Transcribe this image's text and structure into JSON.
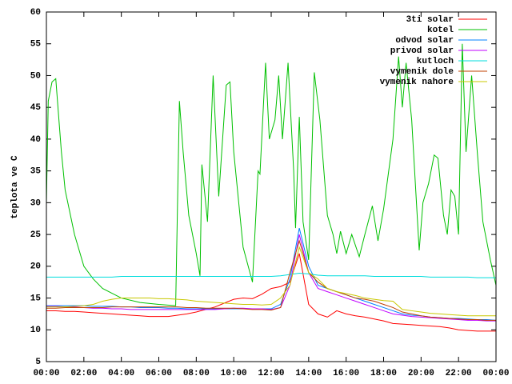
{
  "chart_data": {
    "type": "line",
    "y_label": "teplota ve C",
    "legend": "top-right",
    "xlim": [
      0,
      24
    ],
    "xticks": [
      {
        "value": 0,
        "label": "00:00"
      },
      {
        "value": 2,
        "label": "02:00"
      },
      {
        "value": 4,
        "label": "04:00"
      },
      {
        "value": 6,
        "label": "06:00"
      },
      {
        "value": 8,
        "label": "08:00"
      },
      {
        "value": 10,
        "label": "10:00"
      },
      {
        "value": 12,
        "label": "12:00"
      },
      {
        "value": 14,
        "label": "14:00"
      },
      {
        "value": 16,
        "label": "16:00"
      },
      {
        "value": 18,
        "label": "18:00"
      },
      {
        "value": 20,
        "label": "20:00"
      },
      {
        "value": 22,
        "label": "22:00"
      },
      {
        "value": 24,
        "label": "00:00"
      }
    ],
    "ylim": [
      5,
      60
    ],
    "yticks": [
      5,
      10,
      15,
      20,
      25,
      30,
      35,
      40,
      45,
      50,
      55,
      60
    ],
    "x": [
      0,
      0.5,
      1,
      1.5,
      2,
      2.5,
      3,
      3.5,
      4,
      4.5,
      5,
      5.5,
      6,
      6.5,
      7,
      7.5,
      8,
      8.5,
      9,
      9.5,
      10,
      10.5,
      11,
      11.5,
      12,
      12.5,
      13,
      13.5,
      14,
      14.5,
      15,
      15.5,
      16,
      16.5,
      17,
      17.5,
      18,
      18.5,
      19,
      19.5,
      20,
      20.5,
      21,
      21.5,
      22,
      22.5,
      23,
      23.5,
      24
    ],
    "series": [
      {
        "name": "3ti solar",
        "color": "#ff0000",
        "values": [
          13.0,
          13.0,
          12.9,
          12.9,
          12.8,
          12.7,
          12.6,
          12.5,
          12.4,
          12.3,
          12.2,
          12.1,
          12.1,
          12.1,
          12.3,
          12.5,
          12.8,
          13.2,
          13.6,
          14.2,
          14.8,
          15.0,
          14.9,
          15.6,
          16.5,
          16.8,
          17.5,
          22.0,
          14.0,
          12.5,
          12.0,
          13.0,
          12.5,
          12.2,
          12.0,
          11.7,
          11.4,
          11.0,
          10.9,
          10.8,
          10.7,
          10.6,
          10.5,
          10.3,
          10.0,
          9.9,
          9.8,
          9.8,
          9.8
        ]
      },
      {
        "name": "kotel",
        "color": "#00c000",
        "x": [
          0,
          0.1,
          0.3,
          0.5,
          0.8,
          1,
          1.5,
          2,
          2.5,
          3,
          4,
          5,
          6,
          6.9,
          7.1,
          7.3,
          7.6,
          8,
          8.2,
          8.3,
          8.6,
          8.9,
          9.2,
          9.6,
          9.8,
          10,
          10.5,
          11,
          11.3,
          11.4,
          11.7,
          11.9,
          12.2,
          12.4,
          12.6,
          12.9,
          13.2,
          13.3,
          13.5,
          13.7,
          14,
          14.3,
          14.6,
          15,
          15.3,
          15.5,
          15.7,
          16,
          16.3,
          16.7,
          17,
          17.4,
          17.7,
          18,
          18.5,
          18.8,
          19,
          19.2,
          19.5,
          19.9,
          20.1,
          20.4,
          20.7,
          20.9,
          21.2,
          21.4,
          21.6,
          21.8,
          22,
          22.2,
          22.4,
          22.7,
          23,
          23.3,
          23.7,
          24
        ],
        "values": [
          30,
          46,
          49,
          49.5,
          38,
          32,
          25,
          20,
          18,
          16.5,
          15,
          14.3,
          14,
          13.8,
          46,
          38,
          28,
          22,
          18.5,
          36,
          27,
          50,
          31,
          48.5,
          49,
          38,
          23,
          17.5,
          35,
          34.5,
          52,
          40,
          43,
          50,
          40,
          52,
          35,
          26,
          43.5,
          27,
          21,
          50.5,
          43,
          28,
          25,
          22,
          25.5,
          22,
          25,
          21.5,
          25,
          29.5,
          24,
          29,
          40,
          53,
          45,
          52,
          43,
          22.5,
          30,
          33,
          37.5,
          37,
          28,
          25,
          32,
          31,
          25,
          55,
          38,
          50,
          38,
          27,
          21,
          17
        ]
      },
      {
        "name": "odvod solar",
        "color": "#0080ff",
        "values": [
          13.8,
          13.8,
          13.8,
          13.8,
          13.8,
          13.7,
          13.7,
          13.7,
          13.6,
          13.6,
          13.5,
          13.5,
          13.5,
          13.4,
          13.4,
          13.3,
          13.3,
          13.3,
          13.3,
          13.3,
          13.3,
          13.3,
          13.3,
          13.3,
          13.3,
          14.0,
          18.0,
          26.0,
          20.0,
          17.0,
          16.5,
          16.0,
          15.5,
          15.0,
          14.5,
          14.0,
          13.5,
          13.0,
          12.5,
          12.3,
          12.2,
          12.0,
          11.9,
          11.8,
          11.8,
          11.7,
          11.6,
          11.6,
          11.5
        ]
      },
      {
        "name": "privod solar",
        "color": "#c000ff",
        "values": [
          13.7,
          13.7,
          13.6,
          13.6,
          13.5,
          13.4,
          13.4,
          13.3,
          13.3,
          13.2,
          13.2,
          13.2,
          13.2,
          13.2,
          13.2,
          13.2,
          13.2,
          13.2,
          13.2,
          13.3,
          13.4,
          13.4,
          13.3,
          13.3,
          13.2,
          13.5,
          17.0,
          25.0,
          19.0,
          16.5,
          16.0,
          15.5,
          15.0,
          14.5,
          14.0,
          13.5,
          13.0,
          12.5,
          12.3,
          12.1,
          12.0,
          11.9,
          11.8,
          11.7,
          11.6,
          11.5,
          11.5,
          11.4,
          11.4
        ]
      },
      {
        "name": "kutloch",
        "color": "#00dddd",
        "values": [
          18.3,
          18.3,
          18.3,
          18.3,
          18.3,
          18.3,
          18.3,
          18.3,
          18.4,
          18.4,
          18.4,
          18.4,
          18.4,
          18.4,
          18.4,
          18.4,
          18.4,
          18.4,
          18.4,
          18.4,
          18.4,
          18.4,
          18.4,
          18.4,
          18.4,
          18.5,
          18.7,
          18.9,
          18.8,
          18.6,
          18.5,
          18.5,
          18.5,
          18.5,
          18.5,
          18.4,
          18.4,
          18.4,
          18.4,
          18.4,
          18.4,
          18.3,
          18.3,
          18.3,
          18.3,
          18.3,
          18.2,
          18.2,
          18.2
        ]
      },
      {
        "name": "vymenik dole",
        "color": "#c04000",
        "values": [
          13.4,
          13.4,
          13.5,
          13.5,
          13.5,
          13.5,
          13.5,
          13.6,
          13.6,
          13.6,
          13.6,
          13.6,
          13.6,
          13.6,
          13.6,
          13.5,
          13.5,
          13.4,
          13.4,
          13.4,
          13.4,
          13.3,
          13.2,
          13.2,
          13.1,
          13.5,
          19.0,
          24.0,
          19.0,
          17.5,
          16.5,
          16.0,
          15.5,
          15.0,
          14.8,
          14.5,
          14.0,
          13.5,
          12.8,
          12.5,
          12.2,
          12.0,
          11.9,
          11.8,
          11.7,
          11.6,
          11.6,
          11.5,
          11.5
        ]
      },
      {
        "name": "vymenik nahore",
        "color": "#c8c800",
        "values": [
          13.6,
          13.6,
          13.6,
          13.7,
          13.8,
          14.0,
          14.5,
          14.8,
          15.0,
          15.0,
          15.0,
          15.0,
          14.9,
          14.9,
          14.8,
          14.7,
          14.5,
          14.4,
          14.3,
          14.2,
          14.1,
          14.0,
          14.0,
          13.9,
          14.0,
          15.0,
          17.0,
          23.0,
          19.0,
          18.0,
          16.5,
          16.0,
          15.7,
          15.4,
          15.0,
          14.8,
          14.6,
          14.5,
          13.2,
          13.0,
          12.8,
          12.6,
          12.5,
          12.4,
          12.3,
          12.2,
          12.2,
          12.2,
          12.2
        ]
      }
    ]
  }
}
